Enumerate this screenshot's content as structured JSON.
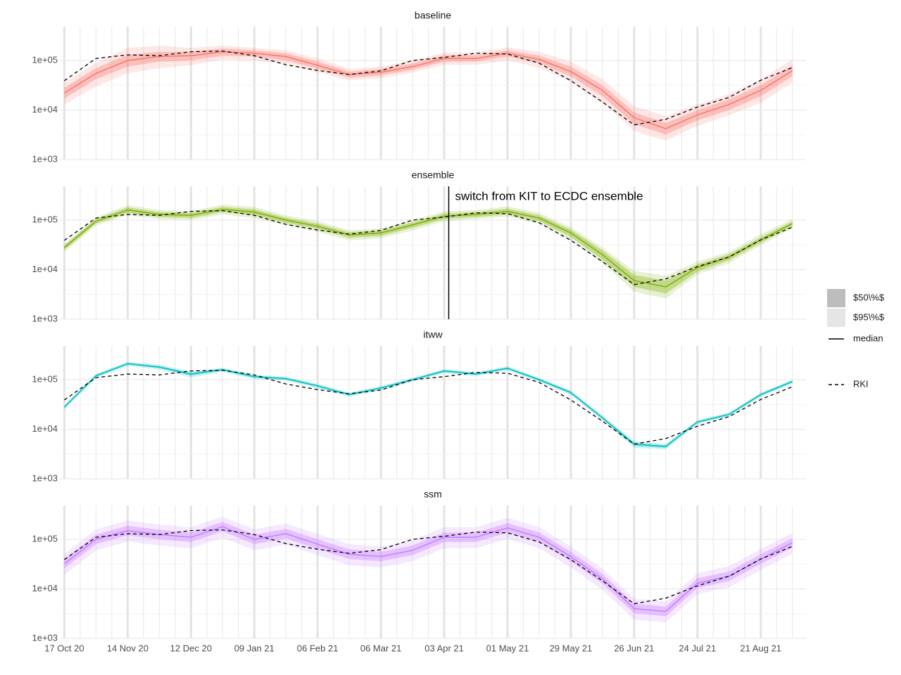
{
  "chart_data": {
    "type": "line",
    "log_scale": true,
    "grid": true,
    "x": [
      "2020-10-17",
      "2020-10-31",
      "2020-11-14",
      "2020-11-28",
      "2020-12-12",
      "2020-12-26",
      "2021-01-09",
      "2021-01-23",
      "2021-02-06",
      "2021-02-20",
      "2021-03-06",
      "2021-03-20",
      "2021-04-03",
      "2021-04-17",
      "2021-05-01",
      "2021-05-15",
      "2021-05-29",
      "2021-06-12",
      "2021-06-26",
      "2021-07-10",
      "2021-07-24",
      "2021-08-07",
      "2021-08-21",
      "2021-09-04"
    ],
    "xlim": [
      "2020-10-15",
      "2021-09-10"
    ],
    "xticks": [
      {
        "value": "2020-10-17",
        "label": "17 Oct 20"
      },
      {
        "value": "2020-11-14",
        "label": "14 Nov 20"
      },
      {
        "value": "2020-12-12",
        "label": "12 Dec 20"
      },
      {
        "value": "2021-01-09",
        "label": "09 Jan 21"
      },
      {
        "value": "2021-02-06",
        "label": "06 Feb 21"
      },
      {
        "value": "2021-03-06",
        "label": "06 Mar 21"
      },
      {
        "value": "2021-04-03",
        "label": "03 Apr 21"
      },
      {
        "value": "2021-05-01",
        "label": "01 May 21"
      },
      {
        "value": "2021-05-29",
        "label": "29 May 21"
      },
      {
        "value": "2021-06-26",
        "label": "26 Jun 21"
      },
      {
        "value": "2021-07-24",
        "label": "24 Jul 21"
      },
      {
        "value": "2021-08-21",
        "label": "21 Aug 21"
      }
    ],
    "ylim": [
      1000,
      480000
    ],
    "yticks": [
      {
        "value": 1000,
        "label": "1e+03"
      },
      {
        "value": 10000,
        "label": "1e+04"
      },
      {
        "value": 100000,
        "label": "1e+05"
      }
    ],
    "legend": {
      "position": "right",
      "entries": [
        "$50\\%$",
        "$95\\%$",
        "median"
      ]
    },
    "reference": {
      "name": "RKI",
      "color": "#000000",
      "values": [
        39000,
        110000,
        130000,
        125000,
        150000,
        155000,
        125000,
        82000,
        63000,
        52000,
        62000,
        100000,
        115000,
        140000,
        135000,
        88000,
        39000,
        14500,
        5000,
        6500,
        11500,
        18000,
        40000,
        72000
      ]
    },
    "annotation": {
      "text": "switch from KIT to ECDC ensemble",
      "x": "2021-04-05",
      "panel": 1
    },
    "panels": [
      {
        "title": "baseline",
        "color": "#F8766D",
        "median": [
          22000,
          55000,
          100000,
          120000,
          125000,
          150000,
          140000,
          120000,
          80000,
          52000,
          58000,
          75000,
          110000,
          110000,
          140000,
          105000,
          60000,
          25000,
          7000,
          4200,
          8000,
          13000,
          25000,
          62000
        ],
        "lo50": [
          17000,
          42000,
          75000,
          95000,
          100000,
          125000,
          120000,
          100000,
          68000,
          45000,
          50000,
          65000,
          95000,
          95000,
          120000,
          88000,
          48000,
          19000,
          5200,
          3200,
          6200,
          10000,
          19000,
          48000
        ],
        "hi50": [
          28000,
          70000,
          130000,
          150000,
          150000,
          175000,
          160000,
          140000,
          95000,
          60000,
          67000,
          87000,
          128000,
          128000,
          160000,
          125000,
          75000,
          32000,
          9000,
          5500,
          10000,
          16500,
          32000,
          80000
        ],
        "lo95": [
          13000,
          30000,
          55000,
          70000,
          80000,
          105000,
          100000,
          85000,
          58000,
          40000,
          44000,
          57000,
          82000,
          82000,
          100000,
          72000,
          38000,
          14000,
          3800,
          2400,
          4800,
          7800,
          14000,
          36000
        ],
        "hi95": [
          36000,
          90000,
          180000,
          200000,
          180000,
          200000,
          180000,
          160000,
          110000,
          68000,
          75000,
          100000,
          145000,
          145000,
          185000,
          150000,
          95000,
          42000,
          12000,
          7500,
          13000,
          21000,
          42000,
          105000
        ]
      },
      {
        "title": "ensemble",
        "color": "#7CAE00",
        "median": [
          28000,
          95000,
          160000,
          130000,
          125000,
          165000,
          145000,
          100000,
          75000,
          50000,
          55000,
          80000,
          120000,
          130000,
          150000,
          110000,
          55000,
          20000,
          6000,
          4500,
          11000,
          18000,
          40000,
          85000
        ],
        "lo50": [
          25000,
          85000,
          140000,
          115000,
          110000,
          145000,
          125000,
          88000,
          66000,
          44000,
          48000,
          70000,
          105000,
          115000,
          130000,
          95000,
          46000,
          16000,
          4500,
          3300,
          9200,
          15500,
          35000,
          76000
        ],
        "hi50": [
          31000,
          105000,
          180000,
          145000,
          140000,
          185000,
          165000,
          112000,
          85000,
          57000,
          62000,
          90000,
          135000,
          145000,
          170000,
          125000,
          64000,
          24500,
          7800,
          6000,
          12800,
          20500,
          45000,
          94000
        ],
        "lo95": [
          23000,
          78000,
          125000,
          105000,
          100000,
          130000,
          110000,
          78000,
          58000,
          39000,
          43000,
          62000,
          95000,
          105000,
          118000,
          85000,
          40000,
          13500,
          3600,
          2600,
          8000,
          13500,
          31000,
          68000
        ],
        "hi95": [
          33000,
          115000,
          200000,
          160000,
          152000,
          205000,
          185000,
          125000,
          95000,
          63000,
          68000,
          100000,
          150000,
          160000,
          190000,
          140000,
          72000,
          28000,
          9500,
          7500,
          14500,
          23000,
          52000,
          105000
        ]
      },
      {
        "title": "itww",
        "color": "#00BFC4",
        "median": [
          28000,
          120000,
          210000,
          180000,
          130000,
          160000,
          115000,
          105000,
          75000,
          50000,
          68000,
          100000,
          150000,
          130000,
          170000,
          100000,
          55000,
          17000,
          5000,
          4500,
          14000,
          20000,
          50000,
          92000
        ],
        "lo50": [
          26500,
          114000,
          200000,
          170000,
          120000,
          152000,
          109000,
          100000,
          71000,
          47500,
          64500,
          95000,
          142000,
          124000,
          162000,
          95000,
          52000,
          16000,
          4600,
          4200,
          13300,
          19000,
          47500,
          87000
        ],
        "hi50": [
          29500,
          126000,
          220000,
          190000,
          138000,
          168000,
          121000,
          110000,
          79000,
          52500,
          71500,
          105000,
          158000,
          137000,
          178000,
          105000,
          58000,
          18000,
          5400,
          4800,
          14700,
          21000,
          52500,
          97000
        ],
        "lo95": [
          25000,
          108000,
          190000,
          160000,
          110000,
          144000,
          103000,
          95000,
          67000,
          45000,
          61000,
          90000,
          135000,
          117000,
          153000,
          90000,
          49000,
          15000,
          4200,
          3900,
          12600,
          18000,
          45000,
          83000
        ],
        "hi95": [
          31000,
          132000,
          231000,
          200000,
          148000,
          176000,
          127000,
          116000,
          83000,
          55000,
          75000,
          110000,
          165000,
          143000,
          187000,
          110000,
          61000,
          19000,
          5800,
          5100,
          15400,
          22000,
          55000,
          101000
        ]
      },
      {
        "title": "ssm",
        "color": "#C77CFF",
        "median": [
          32000,
          100000,
          150000,
          125000,
          110000,
          180000,
          100000,
          130000,
          80000,
          50000,
          45000,
          60000,
          110000,
          110000,
          170000,
          110000,
          45000,
          16000,
          4000,
          3500,
          13000,
          18000,
          40000,
          85000
        ],
        "lo50": [
          26000,
          80000,
          120000,
          100000,
          88000,
          145000,
          80000,
          104000,
          64000,
          40000,
          36000,
          48000,
          88000,
          88000,
          136000,
          88000,
          36000,
          12800,
          3200,
          2800,
          10400,
          14400,
          32000,
          68000
        ],
        "hi50": [
          40000,
          125000,
          188000,
          156000,
          138000,
          225000,
          125000,
          163000,
          100000,
          63000,
          56000,
          75000,
          138000,
          138000,
          213000,
          138000,
          56000,
          20000,
          5000,
          4400,
          16300,
          22500,
          50000,
          106000
        ],
        "lo95": [
          19000,
          60000,
          90000,
          75000,
          66000,
          108000,
          60000,
          78000,
          48000,
          30000,
          27000,
          36000,
          66000,
          66000,
          102000,
          66000,
          27000,
          9600,
          2400,
          2100,
          7800,
          10800,
          24000,
          51000
        ],
        "hi95": [
          51000,
          160000,
          240000,
          200000,
          176000,
          288000,
          160000,
          208000,
          128000,
          80000,
          72000,
          96000,
          176000,
          176000,
          272000,
          176000,
          72000,
          25600,
          6400,
          5600,
          20800,
          28800,
          64000,
          136000
        ]
      }
    ]
  }
}
